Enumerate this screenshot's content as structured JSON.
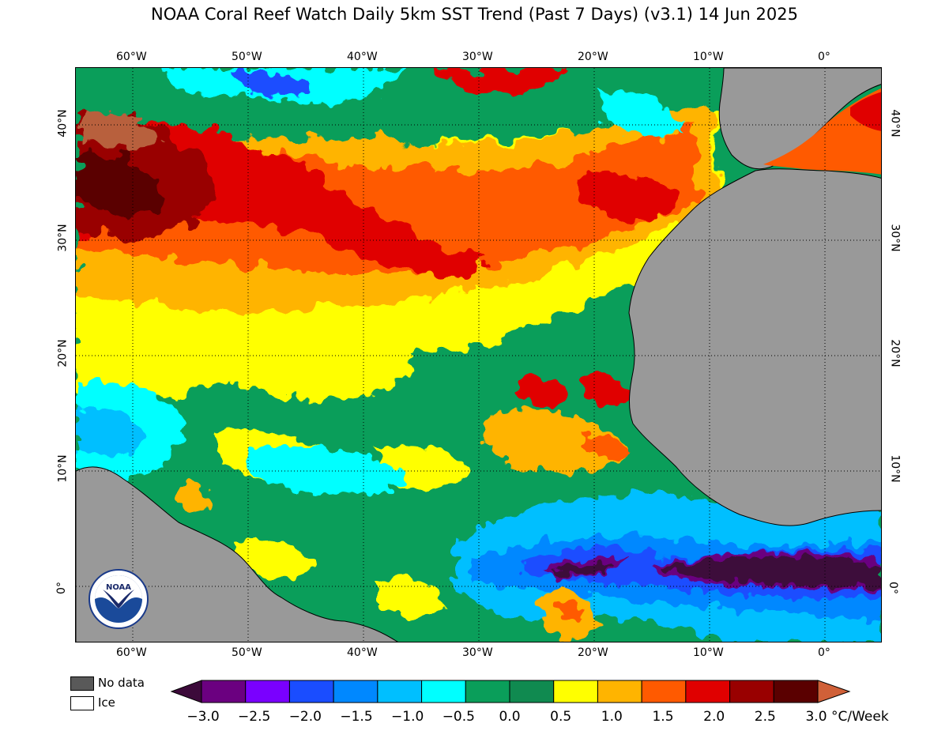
{
  "title": "NOAA Coral Reef Watch Daily 5km SST Trend (Past 7 Days)  (v3.1)   14 Jun 2025",
  "lon_labels": [
    "60°W",
    "50°W",
    "40°W",
    "30°W",
    "20°W",
    "10°W",
    "0°"
  ],
  "lat_labels": [
    "40°N",
    "30°N",
    "20°N",
    "10°N",
    "0°"
  ],
  "legend": {
    "nodata_label": "No data",
    "ice_label": "Ice",
    "nodata_color": "#595959",
    "ice_color": "#ffffff"
  },
  "colorbar": {
    "tick_labels": [
      "−3.0",
      "−2.5",
      "−2.0",
      "−1.5",
      "−1.0",
      "−0.5",
      "0.0",
      "0.5",
      "1.0",
      "1.5",
      "2.0",
      "2.5",
      "3.0"
    ],
    "unit": "°C/Week",
    "colors": [
      "#3c0a3a",
      "#6b0080",
      "#7a00ff",
      "#1a4dff",
      "#0088ff",
      "#00bfff",
      "#00ffff",
      "#0a9e5a",
      "#108a50",
      "#ffff00",
      "#ffb400",
      "#ff5a00",
      "#e00000",
      "#990000",
      "#5a0000",
      "#d06038"
    ]
  },
  "map_colors": {
    "land": "#999999",
    "ocean_base": "#0a9e5a",
    "yellow": "#ffff00",
    "orange": "#ffb400",
    "dark_orange": "#ff5a00",
    "red": "#e00000",
    "dark_red": "#990000",
    "darkest_red": "#5a0000",
    "brown": "#b8603c",
    "cyan": "#00ffff",
    "light_blue": "#00bfff",
    "blue": "#0088ff",
    "deep_blue": "#1a4dff",
    "purple": "#6b0080",
    "dark_purple": "#3c0a3a"
  },
  "logo_text": "NOAA"
}
